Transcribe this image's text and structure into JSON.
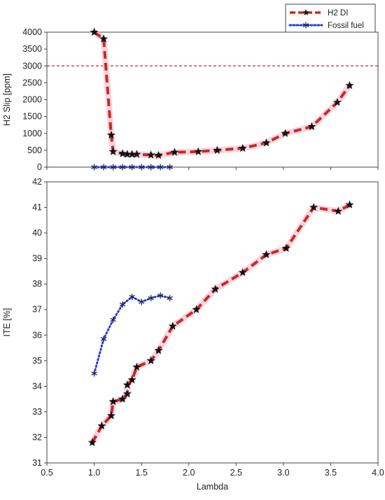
{
  "chart_data": {
    "type": "line",
    "shared_x_axis": {
      "label": "Lambda",
      "range": [
        0.5,
        4.0
      ],
      "ticks": [
        "0.5",
        "1.0",
        "1.5",
        "2.0",
        "2.5",
        "3.0",
        "3.5",
        "4.0"
      ]
    },
    "legend": {
      "placement": "top-right",
      "entries": [
        {
          "name": "H2 DI",
          "color": "#cc2a1e",
          "style": "dashed",
          "marker": "star"
        },
        {
          "name": "Fossil fuel",
          "color": "#2a3fd6",
          "style": "dotted",
          "marker": "asterisk"
        }
      ]
    },
    "panels": [
      {
        "ylabel": "H2 Slip [ppm]",
        "ylim": [
          0,
          4000
        ],
        "yticks": [
          "0",
          "500",
          "1000",
          "1500",
          "2000",
          "2500",
          "3000",
          "3500",
          "4000"
        ],
        "reference_line": {
          "y": 3000,
          "color": "#cc2a1e",
          "style": "dashed"
        },
        "series": [
          {
            "name": "H2 DI",
            "x": [
              1.0,
              1.1,
              1.18,
              1.2,
              1.3,
              1.35,
              1.4,
              1.45,
              1.6,
              1.68,
              1.85,
              2.1,
              2.3,
              2.57,
              2.82,
              3.02,
              3.3,
              3.57,
              3.7
            ],
            "y": [
              4000,
              3800,
              950,
              460,
              400,
              380,
              380,
              380,
              360,
              350,
              440,
              460,
              500,
              560,
              720,
              1000,
              1200,
              1920,
              2420
            ]
          },
          {
            "name": "Fossil fuel",
            "x": [
              1.0,
              1.1,
              1.2,
              1.3,
              1.4,
              1.5,
              1.6,
              1.7,
              1.8
            ],
            "y": [
              0,
              0,
              0,
              0,
              0,
              0,
              0,
              0,
              0
            ]
          }
        ]
      },
      {
        "ylabel": "ITE [%]",
        "ylim": [
          31,
          42
        ],
        "yticks": [
          "31",
          "32",
          "33",
          "34",
          "35",
          "36",
          "37",
          "38",
          "39",
          "40",
          "41",
          "42"
        ],
        "series": [
          {
            "name": "H2 DI",
            "x": [
              0.98,
              1.08,
              1.18,
              1.2,
              1.3,
              1.35,
              1.35,
              1.4,
              1.45,
              1.6,
              1.68,
              1.83,
              2.08,
              2.28,
              2.57,
              2.82,
              3.03,
              3.32,
              3.58,
              3.7
            ],
            "y": [
              31.8,
              32.45,
              32.85,
              33.4,
              33.5,
              33.7,
              34.05,
              34.25,
              34.75,
              35.0,
              35.4,
              36.35,
              37.0,
              37.8,
              38.45,
              39.15,
              39.4,
              41.0,
              40.85,
              41.1
            ]
          },
          {
            "name": "Fossil fuel",
            "x": [
              1.0,
              1.1,
              1.2,
              1.3,
              1.4,
              1.5,
              1.6,
              1.7,
              1.8
            ],
            "y": [
              34.5,
              35.85,
              36.6,
              37.2,
              37.5,
              37.3,
              37.45,
              37.55,
              37.45
            ]
          }
        ]
      }
    ]
  }
}
